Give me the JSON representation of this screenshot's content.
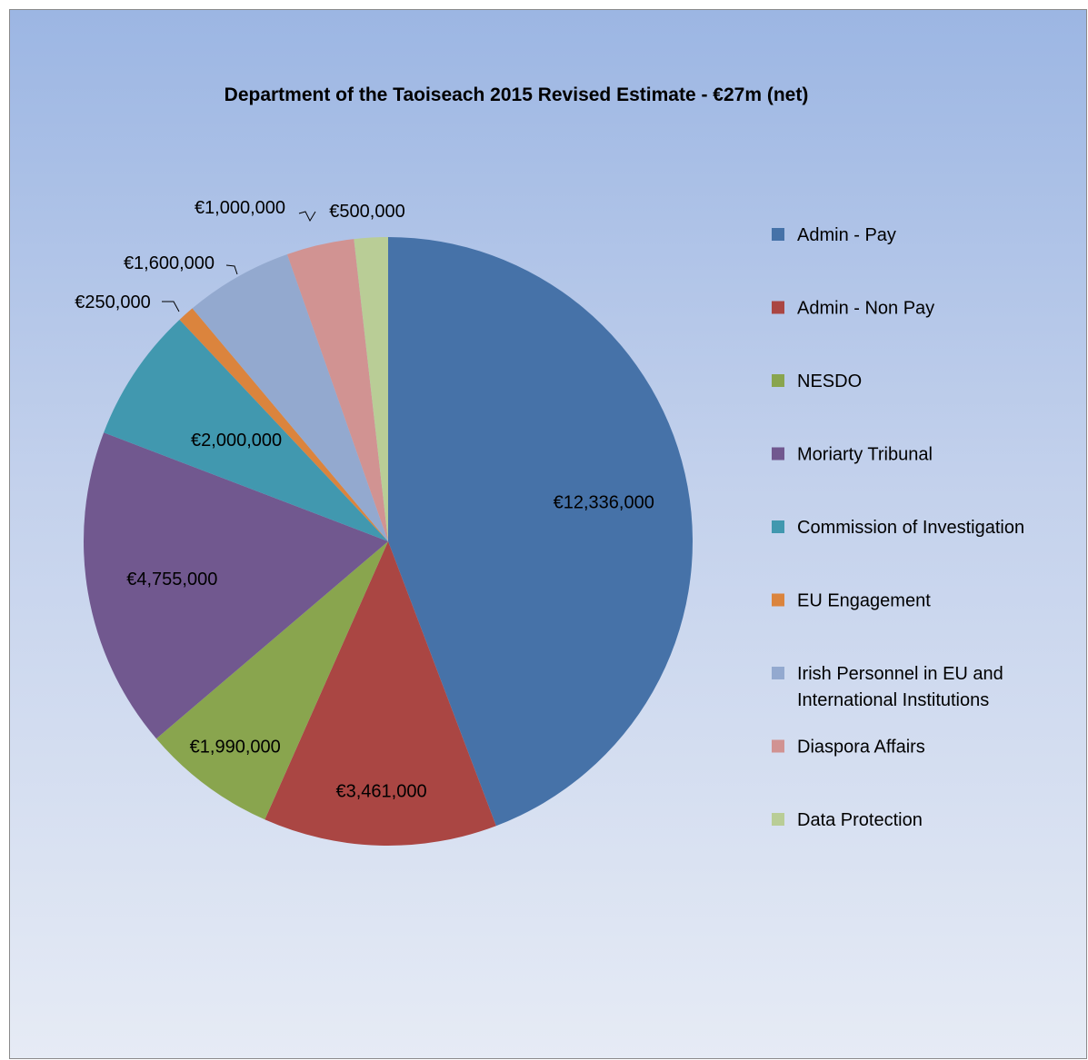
{
  "chart_data": {
    "type": "pie",
    "title": "Department of the Taoiseach 2015 Revised Estimate - €27m (net)",
    "legend_position": "right",
    "slices": [
      {
        "name": "Admin - Pay",
        "value": 12336000,
        "label": "€12,336,000",
        "color": "#4672a8"
      },
      {
        "name": "Admin - Non Pay",
        "value": 3461000,
        "label": "€3,461,000",
        "color": "#aa4643"
      },
      {
        "name": "NESDO",
        "value": 1990000,
        "label": "€1,990,000",
        "color": "#89a54e"
      },
      {
        "name": "Moriarty Tribunal",
        "value": 4755000,
        "label": "€4,755,000",
        "color": "#71588f"
      },
      {
        "name": "Commission of Investigation",
        "value": 2000000,
        "label": "€2,000,000",
        "color": "#4198af"
      },
      {
        "name": "EU Engagement",
        "value": 250000,
        "label": "€250,000",
        "color": "#db843d"
      },
      {
        "name": "Irish Personnel in EU and International Institutions",
        "value": 1600000,
        "label": "€1,600,000",
        "color": "#93a9cf"
      },
      {
        "name": "Diaspora Affairs",
        "value": 1000000,
        "label": "€1,000,000",
        "color": "#d19392"
      },
      {
        "name": "Data Protection",
        "value": 500000,
        "label": "€500,000",
        "color": "#b9cd96"
      }
    ]
  }
}
